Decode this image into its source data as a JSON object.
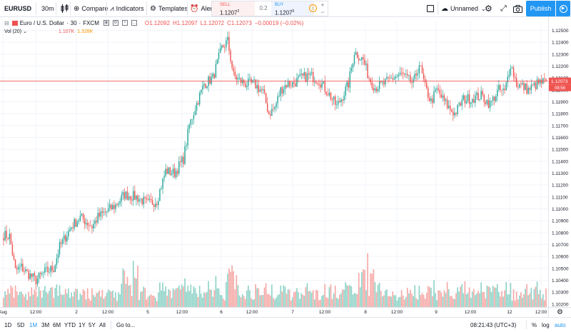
{
  "toolbar": {
    "symbol": "EURUSD",
    "interval": "30m",
    "compare_label": "Compare",
    "indicators_label": "Indicators",
    "templates_label": "Templates",
    "alert_label": "Alert",
    "sell_label": "SELL",
    "sell_price": "1.1207",
    "sell_price_sup": "2",
    "spread": "0.2",
    "buy_label": "BUY",
    "buy_price": "1.1207",
    "buy_price_sup": "5",
    "layout_name": "Unnamed",
    "publish_label": "Publish"
  },
  "legend": {
    "title": "Euro / U.S. Dollar",
    "interval": "30",
    "source": "FXCM",
    "open": "O1.12092",
    "high": "H1.12097",
    "low": "L1.12072",
    "close": "C1.12073",
    "change": "−0.00019 (−0.02%)",
    "vol_label": "Vol (20)",
    "vol_value1": "1.107K",
    "vol_value2": "1.328K"
  },
  "price_axis": {
    "ticks": [
      "1.12500",
      "1.12400",
      "1.12300",
      "1.12200",
      "1.12100",
      "1.12000",
      "1.11900",
      "1.11800",
      "1.11700",
      "1.11600",
      "1.11500",
      "1.11400",
      "1.11300",
      "1.11200",
      "1.11100",
      "1.11000",
      "1.10900",
      "1.10800",
      "1.10700",
      "1.10600",
      "1.10500",
      "1.10400",
      "1.10300",
      "1.10200"
    ],
    "current_price": "1.12073",
    "countdown": "08:56"
  },
  "time_axis": {
    "labels": [
      "Aug",
      "12:00",
      "2",
      "12:00",
      "5",
      "12:00",
      "6",
      "12:00",
      "7",
      "12:00",
      "8",
      "12:00",
      "9",
      "12:00",
      "12",
      "12:00"
    ]
  },
  "bottom": {
    "ranges": [
      "1D",
      "5D",
      "1M",
      "3M",
      "6M",
      "YTD",
      "1Y",
      "5Y",
      "All"
    ],
    "goto_label": "Go to...",
    "time": "08:21:43 (UTC+3)",
    "percent": "%",
    "log": "log",
    "auto": "auto"
  },
  "colors": {
    "up": "#26a69a",
    "down": "#ef5350",
    "vol_up": "#8fd3c7",
    "vol_down": "#f5a9a6",
    "accent": "#2196f3",
    "price_line": "#ef5350"
  },
  "chart_data": {
    "type": "candlestick",
    "price_range": [
      1.10175,
      1.12575
    ],
    "series_close_anchors": [
      [
        0,
        1.1078
      ],
      [
        4,
        1.1077
      ],
      [
        8,
        1.1048
      ],
      [
        12,
        1.1051
      ],
      [
        16,
        1.1046
      ],
      [
        22,
        1.104
      ],
      [
        28,
        1.1047
      ],
      [
        34,
        1.105
      ],
      [
        38,
        1.1068
      ],
      [
        46,
        1.1085
      ],
      [
        52,
        1.1093
      ],
      [
        60,
        1.1085
      ],
      [
        64,
        1.1093
      ],
      [
        70,
        1.1098
      ],
      [
        76,
        1.1103
      ],
      [
        82,
        1.1112
      ],
      [
        90,
        1.111
      ],
      [
        98,
        1.1104
      ],
      [
        104,
        1.1107
      ],
      [
        110,
        1.1132
      ],
      [
        116,
        1.113
      ],
      [
        122,
        1.1142
      ],
      [
        126,
        1.117
      ],
      [
        130,
        1.1185
      ],
      [
        136,
        1.1205
      ],
      [
        142,
        1.121
      ],
      [
        148,
        1.1235
      ],
      [
        152,
        1.1241
      ],
      [
        156,
        1.1212
      ],
      [
        160,
        1.1208
      ],
      [
        164,
        1.1205
      ],
      [
        170,
        1.1205
      ],
      [
        176,
        1.1198
      ],
      [
        180,
        1.118
      ],
      [
        184,
        1.1185
      ],
      [
        188,
        1.12
      ],
      [
        192,
        1.1205
      ],
      [
        196,
        1.1205
      ],
      [
        202,
        1.121
      ],
      [
        208,
        1.1212
      ],
      [
        214,
        1.1208
      ],
      [
        220,
        1.1198
      ],
      [
        226,
        1.1186
      ],
      [
        230,
        1.1195
      ],
      [
        234,
        1.1205
      ],
      [
        238,
        1.1232
      ],
      [
        244,
        1.1225
      ],
      [
        248,
        1.121
      ],
      [
        252,
        1.1202
      ],
      [
        258,
        1.1205
      ],
      [
        264,
        1.121
      ],
      [
        270,
        1.1213
      ],
      [
        278,
        1.1205
      ],
      [
        282,
        1.1222
      ],
      [
        286,
        1.1202
      ],
      [
        290,
        1.119
      ],
      [
        294,
        1.12
      ],
      [
        298,
        1.1192
      ],
      [
        302,
        1.1185
      ],
      [
        306,
        1.118
      ],
      [
        312,
        1.1192
      ],
      [
        318,
        1.1193
      ],
      [
        324,
        1.1195
      ],
      [
        330,
        1.1188
      ],
      [
        336,
        1.12
      ],
      [
        340,
        1.1198
      ],
      [
        344,
        1.1222
      ],
      [
        348,
        1.1205
      ],
      [
        352,
        1.1203
      ],
      [
        356,
        1.12
      ],
      [
        362,
        1.1205
      ],
      [
        368,
        1.1207
      ]
    ],
    "volume_range": [
      0,
      1800
    ],
    "candle_count": 369,
    "last_candle": {
      "open": 1.12092,
      "high": 1.12097,
      "low": 1.12072,
      "close": 1.12073
    }
  }
}
